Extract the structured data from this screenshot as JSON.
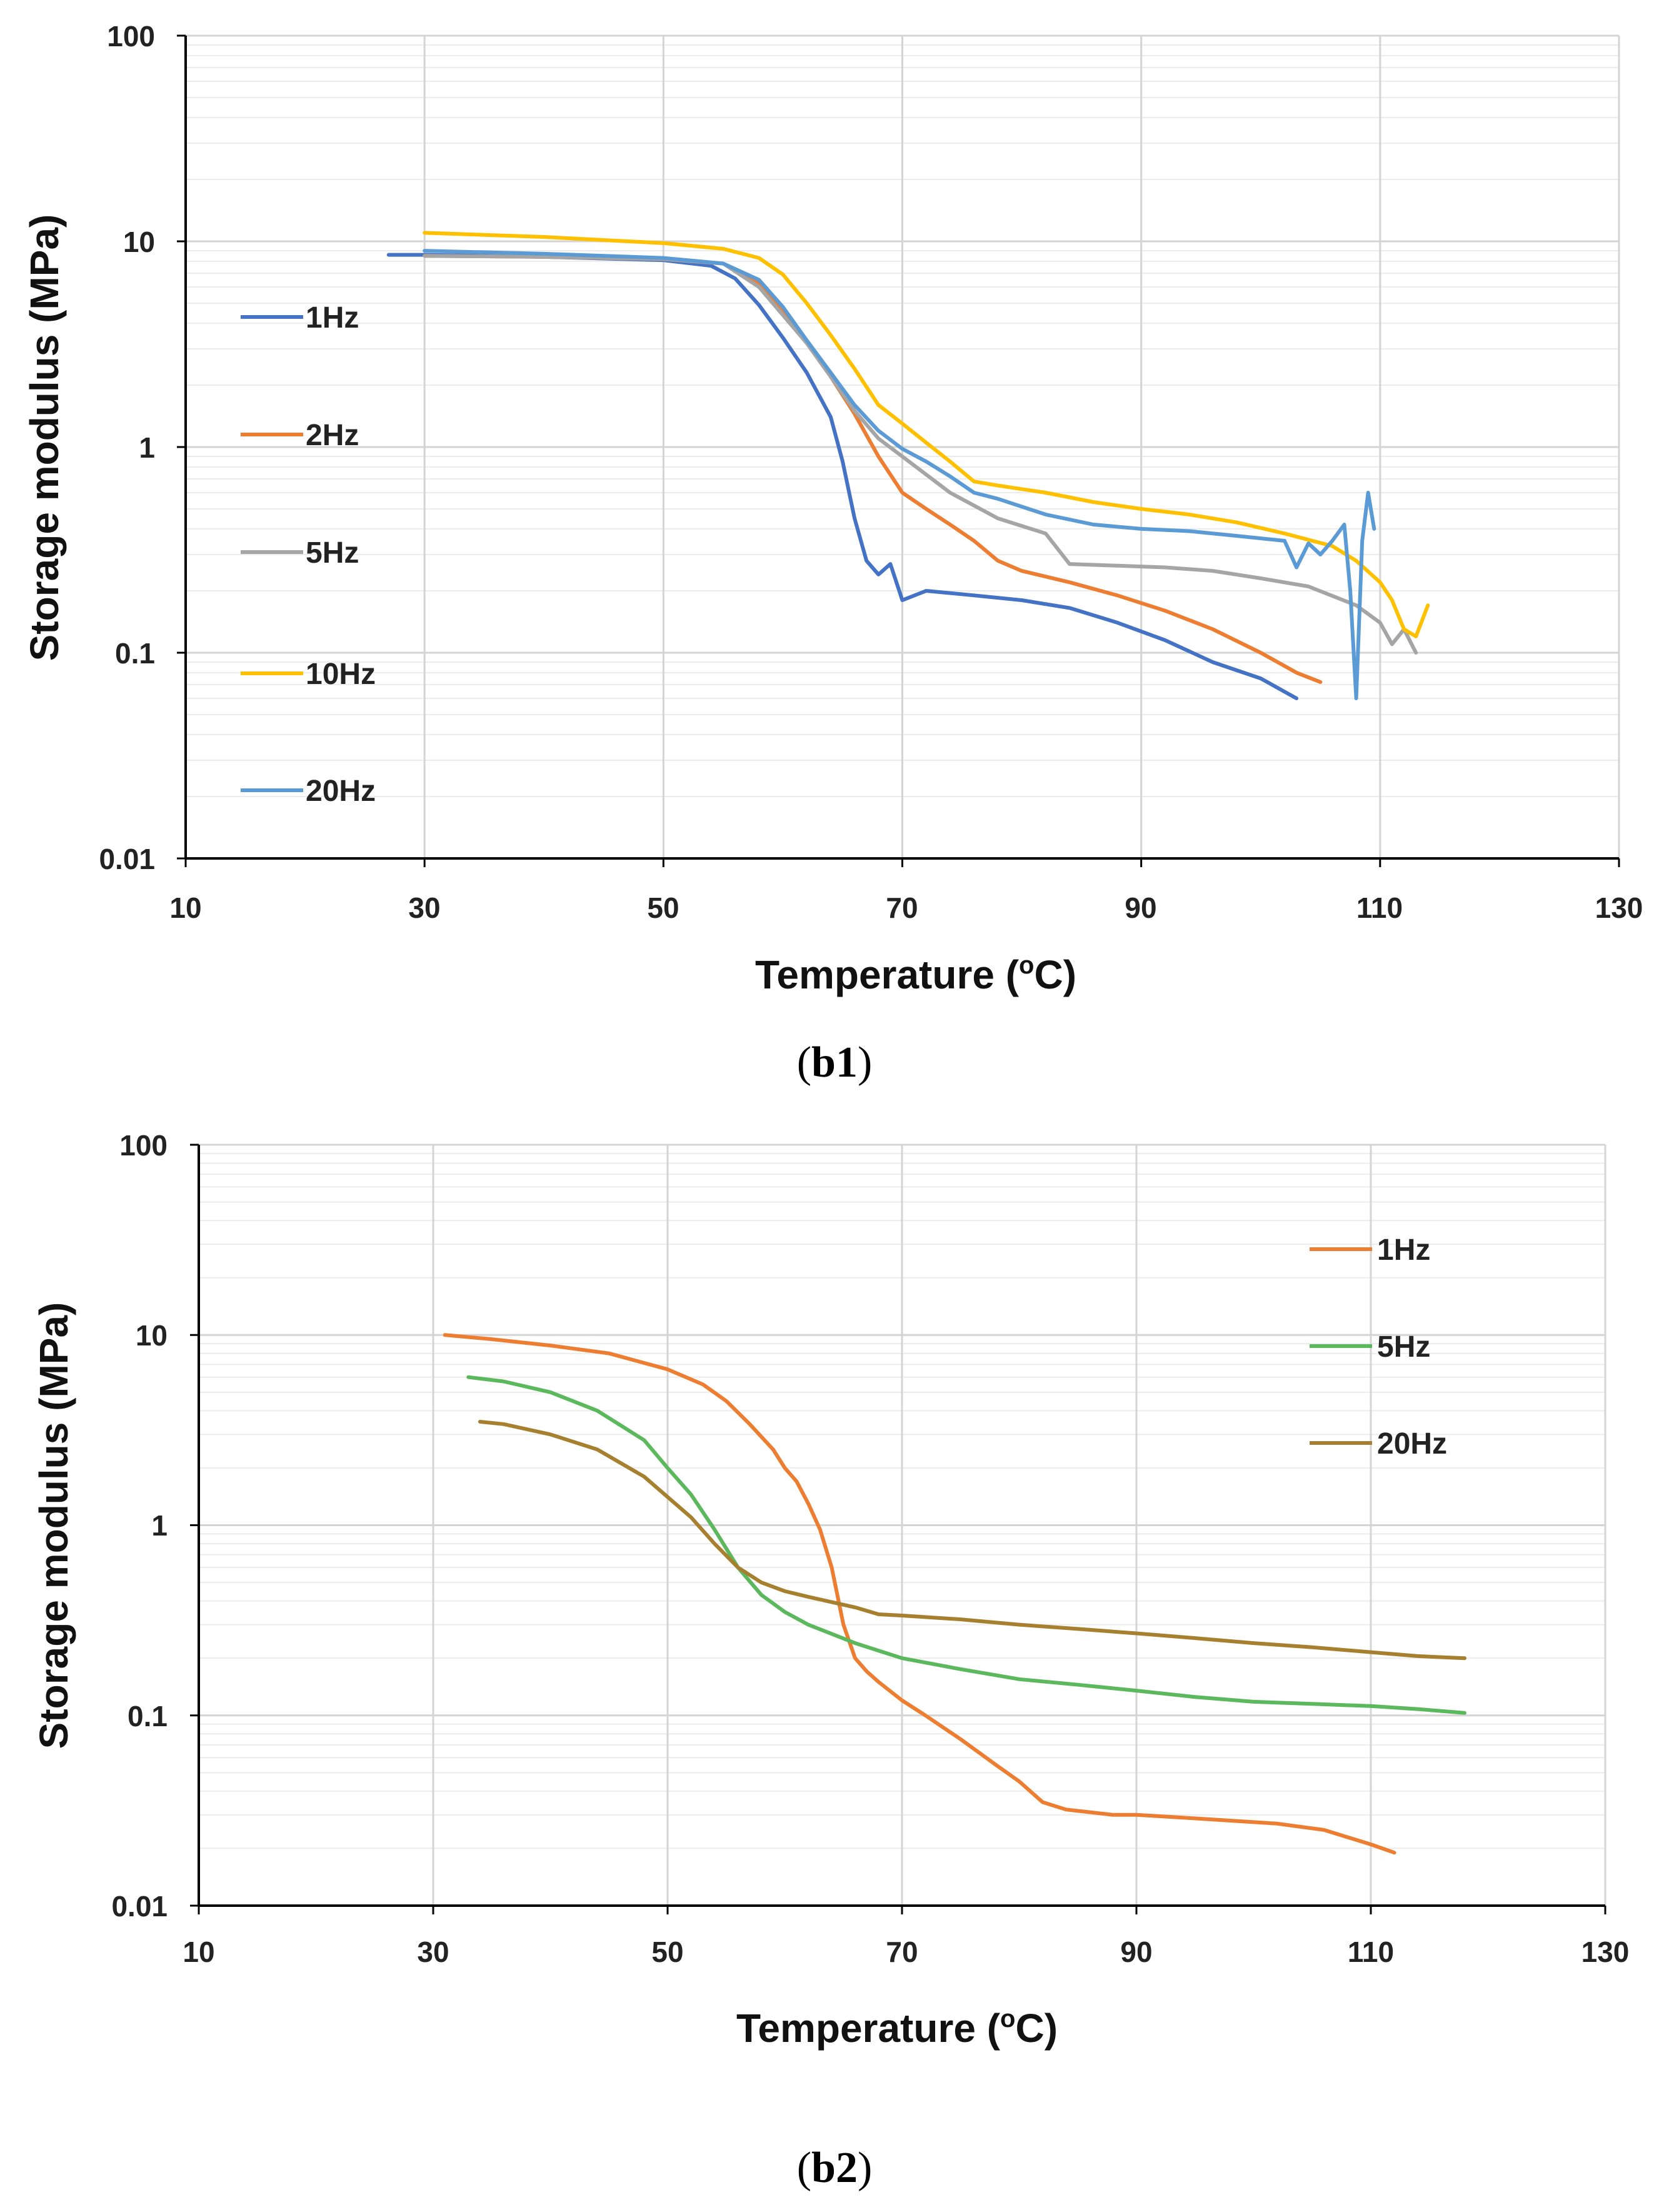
{
  "figures": [
    {
      "id": "b1",
      "caption": "b1"
    },
    {
      "id": "b2",
      "caption": "b2"
    }
  ],
  "chart_data": [
    {
      "type": "line",
      "title": "",
      "xlabel": "Temperature (",
      "xlabel_sup": "o",
      "xlabel_unit": "C)",
      "ylabel": "Storage modulus (MPa)",
      "xlim": [
        10,
        130
      ],
      "ylim": [
        0.01,
        100
      ],
      "yscale": "log",
      "xticks": [
        "10",
        "30",
        "50",
        "70",
        "90",
        "110",
        "130"
      ],
      "yticks": [
        "100",
        "10",
        "1",
        "0.1",
        "0.01"
      ],
      "grid": true,
      "legend_position": "left",
      "series": [
        {
          "name": "1Hz",
          "color": "#4472C4",
          "x": [
            27,
            30,
            40,
            50,
            54,
            56,
            58,
            60,
            62,
            64,
            65,
            66,
            67,
            68,
            69,
            70,
            72,
            76,
            80,
            84,
            88,
            92,
            96,
            100,
            103
          ],
          "y": [
            8.6,
            8.6,
            8.4,
            8.1,
            7.6,
            6.6,
            4.9,
            3.4,
            2.3,
            1.4,
            0.85,
            0.45,
            0.28,
            0.24,
            0.27,
            0.18,
            0.2,
            0.19,
            0.18,
            0.165,
            0.14,
            0.115,
            0.09,
            0.075,
            0.06
          ]
        },
        {
          "name": "2Hz",
          "color": "#ED7D31",
          "x": [
            30,
            40,
            50,
            55,
            58,
            60,
            62,
            64,
            66,
            68,
            70,
            72,
            74,
            76,
            78,
            80,
            84,
            88,
            92,
            96,
            100,
            103,
            105
          ],
          "y": [
            8.5,
            8.4,
            8.2,
            7.8,
            6.2,
            4.5,
            3.2,
            2.2,
            1.45,
            0.9,
            0.6,
            0.5,
            0.42,
            0.35,
            0.28,
            0.25,
            0.22,
            0.19,
            0.16,
            0.13,
            0.1,
            0.08,
            0.072
          ]
        },
        {
          "name": "5Hz",
          "color": "#A5A5A5",
          "x": [
            30,
            40,
            50,
            55,
            58,
            62,
            64,
            66,
            68,
            70,
            74,
            78,
            82,
            84,
            88,
            92,
            96,
            100,
            104,
            108,
            110,
            111,
            112,
            113
          ],
          "y": [
            8.5,
            8.4,
            8.2,
            7.8,
            6.0,
            3.2,
            2.2,
            1.5,
            1.1,
            0.9,
            0.6,
            0.45,
            0.38,
            0.27,
            0.265,
            0.26,
            0.25,
            0.23,
            0.21,
            0.17,
            0.14,
            0.11,
            0.13,
            0.1
          ]
        },
        {
          "name": "10Hz",
          "color": "#FFC000",
          "x": [
            30,
            40,
            50,
            55,
            58,
            60,
            62,
            64,
            66,
            68,
            70,
            72,
            74,
            76,
            78,
            82,
            86,
            90,
            94,
            98,
            102,
            106,
            108,
            110,
            111,
            112,
            113,
            114
          ],
          "y": [
            11,
            10.5,
            9.8,
            9.2,
            8.3,
            6.9,
            5.0,
            3.5,
            2.4,
            1.6,
            1.3,
            1.05,
            0.85,
            0.68,
            0.65,
            0.6,
            0.54,
            0.5,
            0.47,
            0.43,
            0.38,
            0.33,
            0.28,
            0.22,
            0.18,
            0.13,
            0.12,
            0.17
          ]
        },
        {
          "name": "20Hz",
          "color": "#5B9BD5",
          "x": [
            30,
            40,
            50,
            55,
            58,
            60,
            62,
            64,
            66,
            68,
            70,
            72,
            74,
            76,
            78,
            82,
            86,
            90,
            94,
            98,
            102,
            103,
            104,
            105,
            106,
            107,
            107.5,
            108,
            108.5,
            109,
            109.5
          ],
          "y": [
            9.0,
            8.7,
            8.3,
            7.8,
            6.5,
            4.8,
            3.3,
            2.3,
            1.6,
            1.2,
            0.98,
            0.85,
            0.72,
            0.6,
            0.56,
            0.47,
            0.42,
            0.4,
            0.39,
            0.37,
            0.35,
            0.26,
            0.34,
            0.3,
            0.35,
            0.42,
            0.2,
            0.06,
            0.35,
            0.6,
            0.4
          ]
        }
      ]
    },
    {
      "type": "line",
      "title": "",
      "xlabel": "Temperature (",
      "xlabel_sup": "o",
      "xlabel_unit": "C)",
      "ylabel": "Storage modulus (MPa)",
      "xlim": [
        10,
        130
      ],
      "ylim": [
        0.01,
        100
      ],
      "yscale": "log",
      "xticks": [
        "10",
        "30",
        "50",
        "70",
        "90",
        "110",
        "130"
      ],
      "yticks": [
        "100",
        "10",
        "1",
        "0.1",
        "0.01"
      ],
      "grid": true,
      "legend_position": "top-right",
      "series": [
        {
          "name": "1Hz",
          "color": "#ED7D31",
          "x": [
            31,
            35,
            40,
            45,
            50,
            53,
            55,
            57,
            59,
            60,
            61,
            62,
            63,
            64,
            65,
            66,
            67,
            68,
            70,
            72,
            75,
            78,
            80,
            82,
            84,
            86,
            88,
            90,
            94,
            98,
            102,
            106,
            110,
            112
          ],
          "y": [
            10,
            9.5,
            8.8,
            8.0,
            6.6,
            5.5,
            4.5,
            3.4,
            2.5,
            2.0,
            1.7,
            1.3,
            0.95,
            0.6,
            0.3,
            0.2,
            0.17,
            0.15,
            0.12,
            0.1,
            0.075,
            0.055,
            0.045,
            0.035,
            0.032,
            0.031,
            0.03,
            0.03,
            0.029,
            0.028,
            0.027,
            0.025,
            0.021,
            0.019
          ]
        },
        {
          "name": "5Hz",
          "color": "#5CB85C",
          "x": [
            33,
            36,
            40,
            44,
            48,
            50,
            52,
            54,
            56,
            58,
            60,
            62,
            66,
            70,
            75,
            80,
            85,
            90,
            95,
            100,
            105,
            110,
            114,
            118
          ],
          "y": [
            6.0,
            5.7,
            5.0,
            4.0,
            2.8,
            2.0,
            1.45,
            0.95,
            0.6,
            0.43,
            0.35,
            0.3,
            0.24,
            0.2,
            0.175,
            0.155,
            0.145,
            0.135,
            0.125,
            0.118,
            0.115,
            0.112,
            0.108,
            0.103
          ]
        },
        {
          "name": "20Hz",
          "color": "#A6802E",
          "x": [
            34,
            36,
            40,
            44,
            48,
            52,
            54,
            56,
            58,
            60,
            62,
            66,
            68,
            70,
            75,
            80,
            85,
            90,
            95,
            100,
            105,
            110,
            114,
            118
          ],
          "y": [
            3.5,
            3.4,
            3.0,
            2.5,
            1.8,
            1.1,
            0.8,
            0.6,
            0.5,
            0.45,
            0.42,
            0.37,
            0.34,
            0.335,
            0.32,
            0.3,
            0.285,
            0.27,
            0.255,
            0.24,
            0.228,
            0.215,
            0.205,
            0.2
          ]
        }
      ]
    }
  ]
}
